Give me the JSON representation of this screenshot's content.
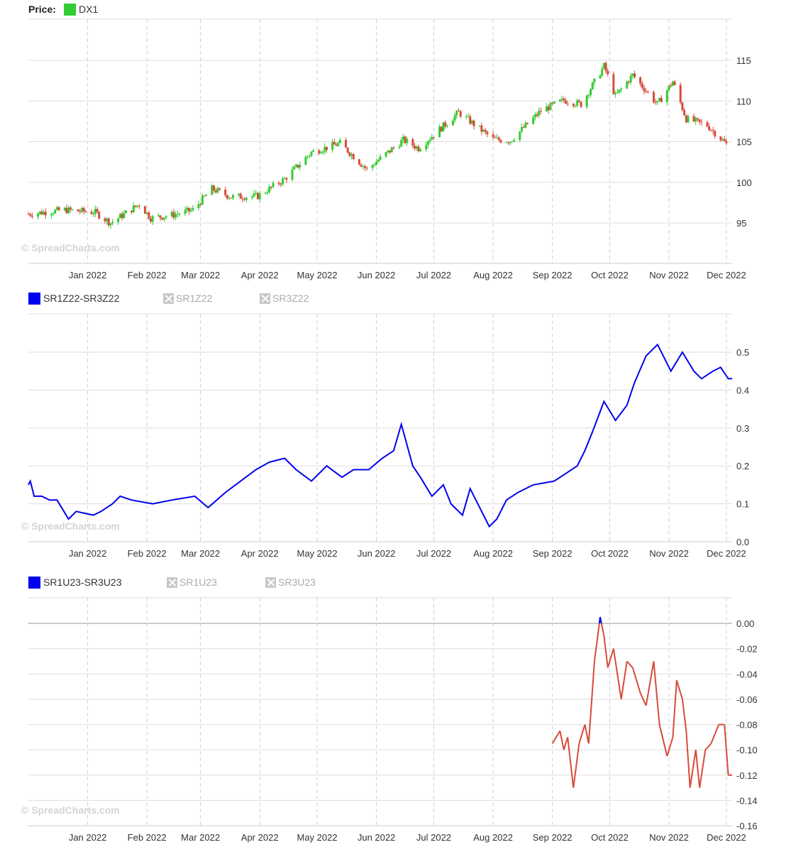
{
  "watermark": "© SpreadCharts.com",
  "legends": [
    {
      "items": [
        {
          "kind": "label",
          "text": "Price:"
        },
        {
          "kind": "swatch",
          "color": "#33cc33",
          "text": "DX1"
        }
      ]
    },
    {
      "items": [
        {
          "kind": "swatch",
          "color": "#0000ee",
          "text": "SR1Z22-SR3Z22"
        },
        {
          "kind": "disabled",
          "text": "SR1Z22"
        },
        {
          "kind": "disabled",
          "text": "SR3Z22"
        }
      ]
    },
    {
      "items": [
        {
          "kind": "swatch",
          "color": "#0000ee",
          "text": "SR1U23-SR3U23"
        },
        {
          "kind": "disabled",
          "text": "SR1U23"
        },
        {
          "kind": "disabled",
          "text": "SR3U23"
        }
      ]
    }
  ],
  "x_ticks": [
    "Jan 2022",
    "Feb 2022",
    "Mar 2022",
    "Apr 2022",
    "May 2022",
    "Jun 2022",
    "Jul 2022",
    "Aug 2022",
    "Sep 2022",
    "Oct 2022",
    "Nov 2022",
    "Dec 2022"
  ],
  "colors": {
    "up": "#33cc33",
    "down": "#d94a3a",
    "spread": "#0000ee",
    "negative": "#d94a3a",
    "grid": "#dddddd"
  },
  "chart_data": [
    {
      "type": "candlestick",
      "series_name": "DX1",
      "xlim": [
        "2021-12-01",
        "2022-12-04"
      ],
      "ylim": [
        90,
        120
      ],
      "yticks": [
        "95",
        "100",
        "105",
        "110",
        "115"
      ],
      "anchors": [
        [
          "2021-12-01",
          96.1
        ],
        [
          "2021-12-20",
          96.6
        ],
        [
          "2022-01-05",
          96.3
        ],
        [
          "2022-01-13",
          95.0
        ],
        [
          "2022-01-28",
          97.3
        ],
        [
          "2022-02-03",
          95.6
        ],
        [
          "2022-02-15",
          96.0
        ],
        [
          "2022-02-25",
          96.6
        ],
        [
          "2022-03-07",
          99.2
        ],
        [
          "2022-03-17",
          98.2
        ],
        [
          "2022-03-31",
          98.3
        ],
        [
          "2022-04-14",
          100.4
        ],
        [
          "2022-04-28",
          103.7
        ],
        [
          "2022-05-13",
          104.8
        ],
        [
          "2022-05-27",
          101.6
        ],
        [
          "2022-06-15",
          105.2
        ],
        [
          "2022-06-23",
          104.2
        ],
        [
          "2022-07-14",
          108.6
        ],
        [
          "2022-08-01",
          105.3
        ],
        [
          "2022-08-10",
          105.1
        ],
        [
          "2022-08-26",
          108.8
        ],
        [
          "2022-09-07",
          110.1
        ],
        [
          "2022-09-16",
          109.6
        ],
        [
          "2022-09-28",
          114.3
        ],
        [
          "2022-10-04",
          110.6
        ],
        [
          "2022-10-13",
          113.2
        ],
        [
          "2022-10-26",
          109.6
        ],
        [
          "2022-11-03",
          112.4
        ],
        [
          "2022-11-10",
          107.8
        ],
        [
          "2022-11-21",
          107.0
        ],
        [
          "2022-12-01",
          104.7
        ]
      ]
    },
    {
      "type": "line",
      "series_name": "SR1Z22-SR3Z22",
      "xlim": [
        "2021-12-01",
        "2022-12-04"
      ],
      "ylim": [
        0.0,
        0.6
      ],
      "yticks": [
        "0.0",
        "0.1",
        "0.2",
        "0.3",
        "0.4",
        "0.5"
      ],
      "points": [
        [
          "2021-12-01",
          0.15
        ],
        [
          "2021-12-02",
          0.16
        ],
        [
          "2021-12-04",
          0.12
        ],
        [
          "2021-12-08",
          0.12
        ],
        [
          "2021-12-12",
          0.11
        ],
        [
          "2021-12-16",
          0.11
        ],
        [
          "2021-12-22",
          0.06
        ],
        [
          "2021-12-26",
          0.08
        ],
        [
          "2022-01-04",
          0.07
        ],
        [
          "2022-01-08",
          0.08
        ],
        [
          "2022-01-14",
          0.1
        ],
        [
          "2022-01-18",
          0.12
        ],
        [
          "2022-01-24",
          0.11
        ],
        [
          "2022-02-04",
          0.1
        ],
        [
          "2022-02-14",
          0.11
        ],
        [
          "2022-02-26",
          0.12
        ],
        [
          "2022-03-05",
          0.09
        ],
        [
          "2022-03-14",
          0.13
        ],
        [
          "2022-03-22",
          0.16
        ],
        [
          "2022-03-30",
          0.19
        ],
        [
          "2022-04-06",
          0.21
        ],
        [
          "2022-04-14",
          0.22
        ],
        [
          "2022-04-20",
          0.19
        ],
        [
          "2022-04-28",
          0.16
        ],
        [
          "2022-05-06",
          0.2
        ],
        [
          "2022-05-14",
          0.17
        ],
        [
          "2022-05-20",
          0.19
        ],
        [
          "2022-05-28",
          0.19
        ],
        [
          "2022-06-04",
          0.22
        ],
        [
          "2022-06-10",
          0.24
        ],
        [
          "2022-06-14",
          0.31
        ],
        [
          "2022-06-20",
          0.2
        ],
        [
          "2022-06-24",
          0.17
        ],
        [
          "2022-06-30",
          0.12
        ],
        [
          "2022-07-06",
          0.15
        ],
        [
          "2022-07-10",
          0.1
        ],
        [
          "2022-07-16",
          0.07
        ],
        [
          "2022-07-20",
          0.14
        ],
        [
          "2022-07-26",
          0.08
        ],
        [
          "2022-07-30",
          0.04
        ],
        [
          "2022-08-03",
          0.06
        ],
        [
          "2022-08-08",
          0.11
        ],
        [
          "2022-08-14",
          0.13
        ],
        [
          "2022-08-22",
          0.15
        ],
        [
          "2022-09-02",
          0.16
        ],
        [
          "2022-09-08",
          0.18
        ],
        [
          "2022-09-14",
          0.2
        ],
        [
          "2022-09-18",
          0.24
        ],
        [
          "2022-09-22",
          0.29
        ],
        [
          "2022-09-28",
          0.37
        ],
        [
          "2022-10-04",
          0.32
        ],
        [
          "2022-10-10",
          0.36
        ],
        [
          "2022-10-14",
          0.42
        ],
        [
          "2022-10-20",
          0.49
        ],
        [
          "2022-10-26",
          0.52
        ],
        [
          "2022-11-02",
          0.45
        ],
        [
          "2022-11-08",
          0.5
        ],
        [
          "2022-11-14",
          0.45
        ],
        [
          "2022-11-18",
          0.43
        ],
        [
          "2022-11-24",
          0.45
        ],
        [
          "2022-11-28",
          0.46
        ],
        [
          "2022-12-02",
          0.43
        ],
        [
          "2022-12-04",
          0.43
        ]
      ]
    },
    {
      "type": "line",
      "series_name": "SR1U23-SR3U23",
      "xlim": [
        "2021-12-01",
        "2022-12-04"
      ],
      "ylim": [
        -0.16,
        0.0
      ],
      "yticks": [
        "0.00",
        "-0.02",
        "-0.04",
        "-0.06",
        "-0.08",
        "-0.10",
        "-0.12",
        "-0.14",
        "-0.16"
      ],
      "points": [
        [
          "2022-09-01",
          -0.095
        ],
        [
          "2022-09-05",
          -0.085
        ],
        [
          "2022-09-07",
          -0.1
        ],
        [
          "2022-09-09",
          -0.09
        ],
        [
          "2022-09-12",
          -0.13
        ],
        [
          "2022-09-15",
          -0.095
        ],
        [
          "2022-09-18",
          -0.08
        ],
        [
          "2022-09-20",
          -0.095
        ],
        [
          "2022-09-23",
          -0.03
        ],
        [
          "2022-09-26",
          0.005
        ],
        [
          "2022-09-28",
          -0.01
        ],
        [
          "2022-09-30",
          -0.035
        ],
        [
          "2022-10-03",
          -0.02
        ],
        [
          "2022-10-07",
          -0.06
        ],
        [
          "2022-10-10",
          -0.03
        ],
        [
          "2022-10-13",
          -0.035
        ],
        [
          "2022-10-17",
          -0.055
        ],
        [
          "2022-10-20",
          -0.065
        ],
        [
          "2022-10-24",
          -0.03
        ],
        [
          "2022-10-27",
          -0.08
        ],
        [
          "2022-10-31",
          -0.105
        ],
        [
          "2022-11-03",
          -0.09
        ],
        [
          "2022-11-05",
          -0.045
        ],
        [
          "2022-11-08",
          -0.06
        ],
        [
          "2022-11-10",
          -0.085
        ],
        [
          "2022-11-12",
          -0.13
        ],
        [
          "2022-11-15",
          -0.1
        ],
        [
          "2022-11-17",
          -0.13
        ],
        [
          "2022-11-20",
          -0.1
        ],
        [
          "2022-11-23",
          -0.095
        ],
        [
          "2022-11-27",
          -0.08
        ],
        [
          "2022-11-30",
          -0.08
        ],
        [
          "2022-12-02",
          -0.12
        ],
        [
          "2022-12-04",
          -0.12
        ]
      ]
    }
  ]
}
